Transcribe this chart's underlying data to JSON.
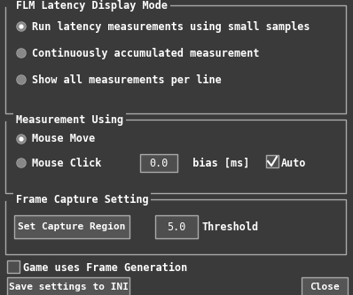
{
  "bg_color": "#3a3a3a",
  "border_color": "#aaaaaa",
  "text_color": "#ffffff",
  "box_bg": "#3a3a3a",
  "input_bg": "#4e4e4e",
  "button_bg": "#555555",
  "section1_title": "FLM Latency Display Mode",
  "section1_options": [
    "Run latency measurements using small samples",
    "Continuously accumulated measurement",
    "Show all measurements per line"
  ],
  "section1_selected": 0,
  "section2_title": "Measurement Using",
  "section2_options": [
    "Mouse Move",
    "Mouse Click"
  ],
  "section2_selected": 0,
  "bias_value": "0.0",
  "bias_label": "  bias [ms]",
  "auto_label": "Auto",
  "auto_checked": true,
  "section3_title": "Frame Capture Setting",
  "capture_btn": "Set Capture Region",
  "threshold_value": "5.0",
  "threshold_label": "Threshold",
  "frame_gen_label": "Game uses Frame Generation",
  "frame_gen_checked": false,
  "save_btn": "Save settings to INI",
  "close_btn": "Close",
  "fig_w": 3.98,
  "fig_h": 3.33,
  "dpi": 100
}
